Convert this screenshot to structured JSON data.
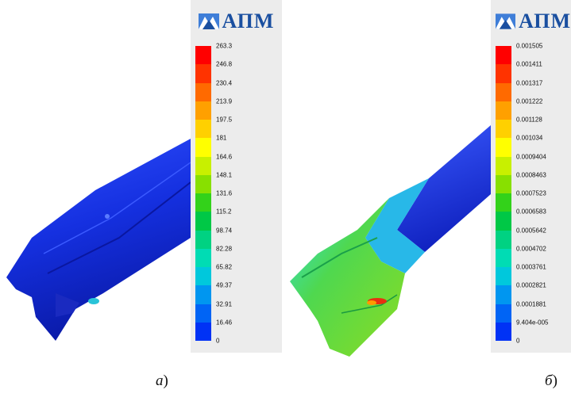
{
  "brand": "АПМ",
  "panels": [
    {
      "id": "a",
      "caption_letter": "а",
      "caption_paren": ")",
      "legend_labels": [
        "263.3",
        "246.8",
        "230.4",
        "213.9",
        "197.5",
        "181",
        "164.6",
        "148.1",
        "131.6",
        "115.2",
        "98.74",
        "82.28",
        "65.82",
        "49.37",
        "32.91",
        "16.46",
        "0"
      ]
    },
    {
      "id": "b",
      "caption_letter": "б",
      "caption_paren": ")",
      "legend_labels": [
        "0.001505",
        "0.001411",
        "0.001317",
        "0.001222",
        "0.001128",
        "0.001034",
        "0.0009404",
        "0.0008463",
        "0.0007523",
        "0.0006583",
        "0.0005642",
        "0.0004702",
        "0.0003761",
        "0.0002821",
        "0.0001881",
        "9.404e-005",
        "0"
      ]
    }
  ],
  "colormap": [
    "#ff0000",
    "#ff3300",
    "#ff6a00",
    "#ffa000",
    "#ffd000",
    "#ffff00",
    "#c8f000",
    "#88e000",
    "#33d21a",
    "#00c846",
    "#00d282",
    "#00dcb4",
    "#00c8dc",
    "#0096f0",
    "#0064f5",
    "#0032f5",
    "#0000f0"
  ]
}
